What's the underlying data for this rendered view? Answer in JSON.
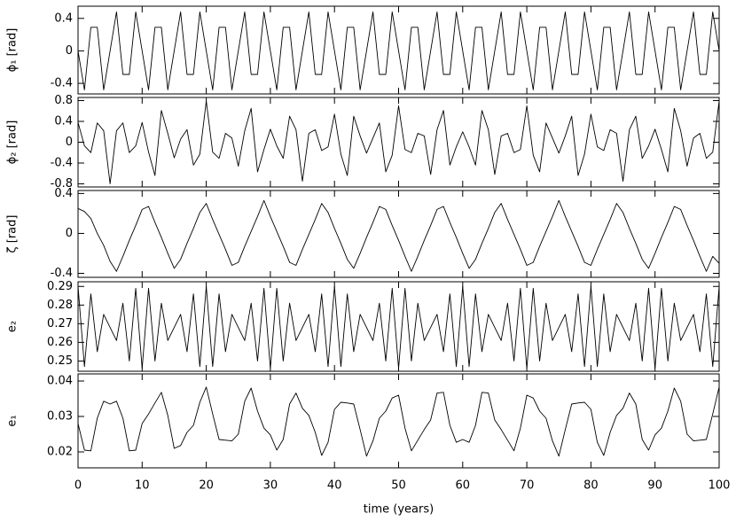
{
  "chart_data": [
    {
      "type": "line",
      "ylabel": "ϕ₁ [rad]",
      "ylim": [
        -0.53,
        0.55
      ],
      "yticks": [
        -0.4,
        0,
        0.4
      ],
      "series": [
        {
          "color": "#000000",
          "values": [
            0,
            -0.48,
            0.29,
            0.29,
            -0.48,
            0,
            0.48,
            -0.29,
            -0.29,
            0.48,
            0,
            -0.48,
            0.29,
            0.29,
            -0.48,
            0,
            0.48,
            -0.29,
            -0.29,
            0.48,
            0,
            -0.48,
            0.29,
            0.29,
            -0.48,
            0,
            0.48,
            -0.29,
            -0.29,
            0.48,
            0,
            -0.48,
            0.29,
            0.29,
            -0.48,
            0,
            0.48,
            -0.29,
            -0.29,
            0.48,
            0,
            -0.48,
            0.29,
            0.29,
            -0.48,
            0,
            0.48,
            -0.29,
            -0.29,
            0.48,
            0,
            -0.48,
            0.29,
            0.29,
            -0.48,
            0,
            0.48,
            -0.29,
            -0.29,
            0.48,
            0,
            -0.48,
            0.29,
            0.29,
            -0.48,
            0,
            0.48,
            -0.29,
            -0.29,
            0.48,
            0,
            -0.48,
            0.29,
            0.29,
            -0.48,
            0,
            0.48,
            -0.29,
            -0.29,
            0.48,
            0,
            -0.48,
            0.29,
            0.29,
            -0.48,
            0,
            0.48,
            -0.29,
            -0.29,
            0.48,
            0,
            -0.48,
            0.29,
            0.29,
            -0.48,
            0,
            0.48,
            -0.29,
            -0.29,
            0.48,
            0
          ]
        }
      ]
    },
    {
      "type": "line",
      "ylabel": "ϕ₂ [rad]",
      "ylim": [
        -0.86,
        0.86
      ],
      "yticks": [
        -0.8,
        -0.4,
        0,
        0.4,
        0.8
      ],
      "series": [
        {
          "color": "#000000",
          "values": [
            0.38,
            -0.07,
            -0.2,
            0.37,
            0.22,
            -0.8,
            0.22,
            0.37,
            -0.2,
            -0.07,
            0.38,
            -0.19,
            -0.64,
            0.61,
            0.17,
            -0.3,
            0.06,
            0.24,
            -0.44,
            -0.23,
            0.79,
            -0.19,
            -0.31,
            0.17,
            0.08,
            -0.46,
            0.22,
            0.65,
            -0.57,
            -0.14,
            0.25,
            -0.07,
            -0.31,
            0.5,
            0.24,
            -0.75,
            0.17,
            0.24,
            -0.16,
            -0.09,
            0.54,
            -0.23,
            -0.64,
            0.5,
            0.12,
            -0.21,
            0.08,
            0.37,
            -0.57,
            -0.25,
            0.7,
            -0.14,
            -0.2,
            0.17,
            0.12,
            -0.62,
            0.24,
            0.61,
            -0.44,
            -0.09,
            0.2,
            -0.09,
            -0.44,
            0.61,
            0.24,
            -0.62,
            0.12,
            0.17,
            -0.2,
            -0.14,
            0.7,
            -0.25,
            -0.57,
            0.37,
            0.08,
            -0.21,
            0.12,
            0.5,
            -0.64,
            -0.23,
            0.54,
            -0.09,
            -0.16,
            0.24,
            0.17,
            -0.75,
            0.24,
            0.5,
            -0.31,
            -0.07,
            0.25,
            -0.14,
            -0.57,
            0.65,
            0.22,
            -0.46,
            0.08,
            0.17,
            -0.31,
            -0.19,
            0.79
          ]
        }
      ]
    },
    {
      "type": "line",
      "ylabel": "ζ [rad]",
      "ylim": [
        -0.44,
        0.43
      ],
      "yticks": [
        -0.4,
        0,
        0.4
      ],
      "series": [
        {
          "color": "#000000",
          "values": [
            0.25,
            0.22,
            0.15,
            0,
            -0.12,
            -0.28,
            -0.38,
            -0.23,
            -0.07,
            0.08,
            0.24,
            0.27,
            0.11,
            -0.04,
            -0.2,
            -0.35,
            -0.26,
            -0.1,
            0.05,
            0.21,
            0.3,
            0.14,
            -0.01,
            -0.16,
            -0.32,
            -0.29,
            -0.13,
            0.02,
            0.17,
            0.33,
            0.17,
            0.02,
            -0.13,
            -0.29,
            -0.32,
            -0.16,
            -0.01,
            0.14,
            0.3,
            0.21,
            0.05,
            -0.1,
            -0.26,
            -0.35,
            -0.2,
            -0.04,
            0.11,
            0.27,
            0.24,
            0.08,
            -0.07,
            -0.23,
            -0.38,
            -0.23,
            -0.07,
            0.08,
            0.24,
            0.27,
            0.11,
            -0.04,
            -0.2,
            -0.35,
            -0.26,
            -0.1,
            0.05,
            0.21,
            0.3,
            0.14,
            -0.01,
            -0.16,
            -0.32,
            -0.29,
            -0.13,
            0.02,
            0.17,
            0.33,
            0.17,
            0.02,
            -0.13,
            -0.29,
            -0.32,
            -0.16,
            -0.01,
            0.14,
            0.3,
            0.21,
            0.05,
            -0.1,
            -0.26,
            -0.35,
            -0.2,
            -0.04,
            0.11,
            0.27,
            0.24,
            0.08,
            -0.07,
            -0.23,
            -0.38,
            -0.23,
            -0.3
          ]
        }
      ]
    },
    {
      "type": "line",
      "ylabel": "e₂",
      "ylim": [
        0.2445,
        0.2925
      ],
      "yticks": [
        0.25,
        0.26,
        0.27,
        0.28,
        0.29
      ],
      "series": [
        {
          "color": "#000000",
          "values": [
            0.29,
            0.247,
            0.286,
            0.255,
            0.275,
            0.268,
            0.261,
            0.281,
            0.25,
            0.289,
            0.246,
            0.289,
            0.25,
            0.281,
            0.261,
            0.268,
            0.275,
            0.255,
            0.286,
            0.247,
            0.29,
            0.247,
            0.286,
            0.255,
            0.275,
            0.268,
            0.261,
            0.281,
            0.25,
            0.289,
            0.246,
            0.289,
            0.25,
            0.281,
            0.261,
            0.268,
            0.275,
            0.255,
            0.286,
            0.247,
            0.29,
            0.247,
            0.286,
            0.255,
            0.275,
            0.268,
            0.261,
            0.281,
            0.25,
            0.289,
            0.246,
            0.289,
            0.25,
            0.281,
            0.261,
            0.268,
            0.275,
            0.255,
            0.286,
            0.247,
            0.29,
            0.247,
            0.286,
            0.255,
            0.275,
            0.268,
            0.261,
            0.281,
            0.25,
            0.289,
            0.246,
            0.289,
            0.25,
            0.281,
            0.261,
            0.268,
            0.275,
            0.255,
            0.286,
            0.247,
            0.29,
            0.247,
            0.286,
            0.255,
            0.275,
            0.268,
            0.261,
            0.281,
            0.25,
            0.289,
            0.246,
            0.289,
            0.25,
            0.281,
            0.261,
            0.268,
            0.275,
            0.255,
            0.286,
            0.247,
            0.29
          ]
        }
      ]
    },
    {
      "type": "line",
      "ylabel": "e₁",
      "xlabel": "time (years)",
      "ylim": [
        0.0155,
        0.042
      ],
      "yticks": [
        0.02,
        0.03,
        0.04
      ],
      "xlim": [
        0,
        100
      ],
      "xticks": [
        0,
        10,
        20,
        30,
        40,
        50,
        60,
        70,
        80,
        90,
        100
      ],
      "x": [
        0,
        1,
        2,
        3,
        4,
        5,
        6,
        7,
        8,
        9,
        10,
        11,
        12,
        13,
        14,
        15,
        16,
        17,
        18,
        19,
        20,
        21,
        22,
        23,
        24,
        25,
        26,
        27,
        28,
        29,
        30,
        31,
        32,
        33,
        34,
        35,
        36,
        37,
        38,
        39,
        40,
        41,
        42,
        43,
        44,
        45,
        46,
        47,
        48,
        49,
        50,
        51,
        52,
        53,
        54,
        55,
        56,
        57,
        58,
        59,
        60,
        61,
        62,
        63,
        64,
        65,
        66,
        67,
        68,
        69,
        70,
        71,
        72,
        73,
        74,
        75,
        76,
        77,
        78,
        79,
        80,
        81,
        82,
        83,
        84,
        85,
        86,
        87,
        88,
        89,
        90,
        91,
        92,
        93,
        94,
        95,
        96,
        97,
        98,
        99,
        100
      ],
      "series": [
        {
          "color": "#000000",
          "values": [
            0.028,
            0.0205,
            0.0203,
            0.0295,
            0.0343,
            0.0335,
            0.0343,
            0.0295,
            0.0203,
            0.0205,
            0.028,
            0.0307,
            0.0338,
            0.0368,
            0.0303,
            0.021,
            0.0218,
            0.0255,
            0.0275,
            0.034,
            0.0383,
            0.0307,
            0.0235,
            0.0233,
            0.0231,
            0.025,
            0.0343,
            0.038,
            0.0315,
            0.0267,
            0.0248,
            0.0205,
            0.0235,
            0.0335,
            0.0366,
            0.0323,
            0.0303,
            0.0255,
            0.019,
            0.0227,
            0.032,
            0.034,
            0.0338,
            0.0335,
            0.0263,
            0.0188,
            0.0231,
            0.0295,
            0.0315,
            0.0352,
            0.036,
            0.0267,
            0.0203,
            0.0233,
            0.0263,
            0.029,
            0.0366,
            0.0368,
            0.0275,
            0.0227,
            0.0235,
            0.0227,
            0.0275,
            0.0368,
            0.0366,
            0.029,
            0.0263,
            0.0233,
            0.0203,
            0.0267,
            0.036,
            0.0352,
            0.0315,
            0.0295,
            0.0231,
            0.0188,
            0.0263,
            0.0335,
            0.0338,
            0.034,
            0.032,
            0.0227,
            0.019,
            0.0255,
            0.0303,
            0.0323,
            0.0366,
            0.0335,
            0.0235,
            0.0205,
            0.0248,
            0.0267,
            0.0315,
            0.038,
            0.0343,
            0.025,
            0.0231,
            0.0233,
            0.0235,
            0.0307,
            0.0383
          ]
        }
      ]
    }
  ]
}
